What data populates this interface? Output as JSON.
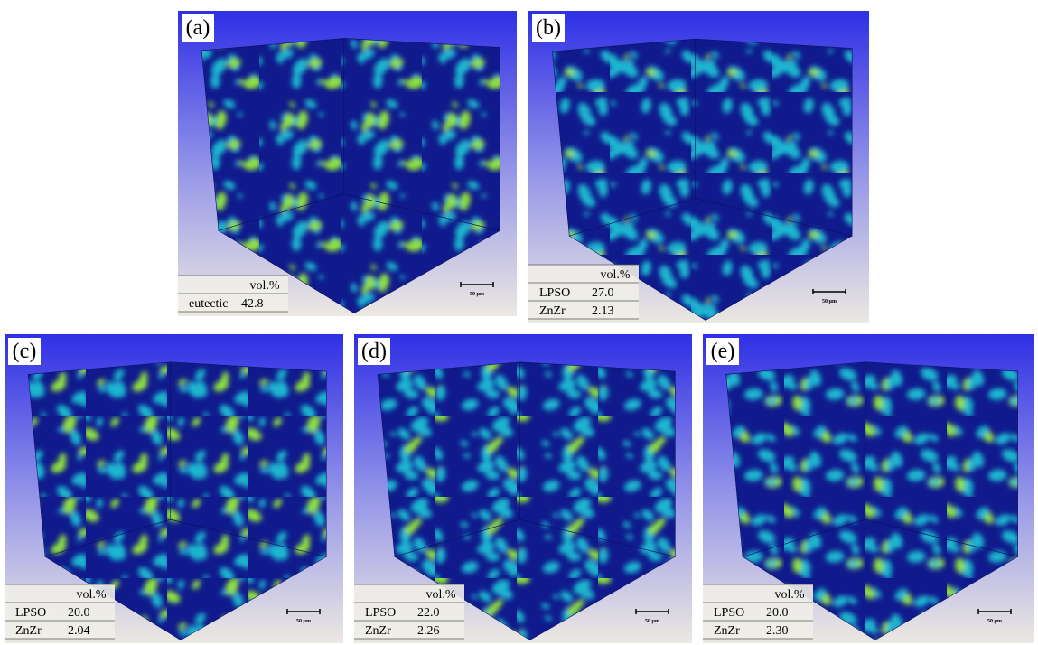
{
  "panels": [
    {
      "label": "(a)",
      "table": {
        "header": "vol.%",
        "rows": [
          [
            "eutectic",
            "42.8"
          ]
        ]
      },
      "scale_bar": "50 µm"
    },
    {
      "label": "(b)",
      "table": {
        "header": "vol.%",
        "rows": [
          [
            "LPSO",
            "27.0"
          ],
          [
            "ZnZr",
            "2.13"
          ]
        ]
      },
      "scale_bar": "50 µm"
    },
    {
      "label": "(c)",
      "table": {
        "header": "vol.%",
        "rows": [
          [
            "LPSO",
            "20.0"
          ],
          [
            "ZnZr",
            "2.04"
          ]
        ]
      },
      "scale_bar": "50 µm"
    },
    {
      "label": "(d)",
      "table": {
        "header": "vol.%",
        "rows": [
          [
            "LPSO",
            "22.0"
          ],
          [
            "ZnZr",
            "2.26"
          ]
        ]
      },
      "scale_bar": "50 µm"
    },
    {
      "label": "(e)",
      "table": {
        "header": "vol.%",
        "rows": [
          [
            "LPSO",
            "20.0"
          ],
          [
            "ZnZr",
            "2.30"
          ]
        ]
      },
      "scale_bar": "50 µm"
    }
  ]
}
